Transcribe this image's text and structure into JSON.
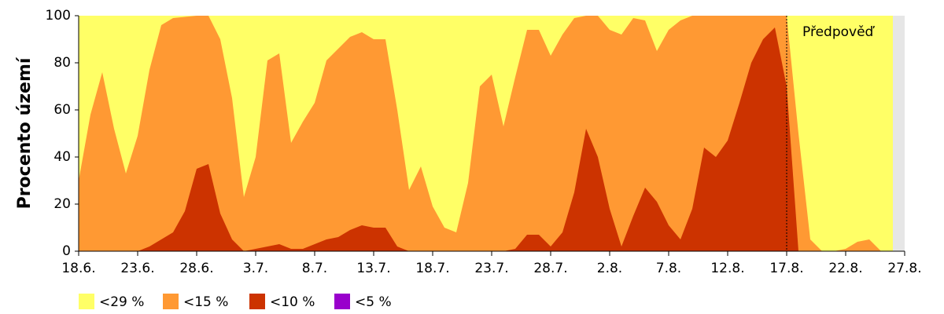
{
  "chart_data": {
    "type": "area",
    "y_label": "Procento území",
    "categories": [
      "18.6.",
      null,
      null,
      null,
      null,
      "23.6.",
      null,
      null,
      null,
      null,
      "28.6.",
      null,
      null,
      null,
      null,
      "3.7.",
      null,
      null,
      null,
      null,
      "8.7.",
      null,
      null,
      null,
      null,
      "13.7.",
      null,
      null,
      null,
      null,
      "18.7.",
      null,
      null,
      null,
      null,
      "23.7.",
      null,
      null,
      null,
      null,
      "28.7.",
      null,
      null,
      null,
      null,
      "2.8.",
      null,
      null,
      null,
      null,
      "7.8.",
      null,
      null,
      null,
      null,
      "12.8.",
      null,
      null,
      null,
      null,
      "17.8.",
      null,
      null,
      null,
      null,
      "22.8.",
      null,
      null,
      null,
      null,
      "27.8."
    ],
    "ylim": [
      0,
      100
    ],
    "yticks": [
      0,
      20,
      40,
      60,
      80,
      100
    ],
    "annotation": {
      "text": "Předpověď",
      "at": "17.8."
    },
    "series": [
      {
        "name": "<29 %",
        "color": "#ffff66",
        "values": [
          100,
          100,
          100,
          100,
          100,
          100,
          100,
          100,
          100,
          100,
          100,
          100,
          100,
          100,
          100,
          100,
          100,
          100,
          100,
          100,
          100,
          100,
          100,
          100,
          100,
          100,
          100,
          100,
          100,
          100,
          100,
          100,
          100,
          100,
          100,
          100,
          100,
          100,
          100,
          100,
          100,
          100,
          100,
          100,
          100,
          100,
          100,
          100,
          100,
          100,
          100,
          100,
          100,
          100,
          100,
          100,
          100,
          100,
          100,
          100,
          100,
          100,
          100,
          100,
          100,
          100,
          100,
          100,
          100,
          100,
          null
        ]
      },
      {
        "name": "<15 %",
        "color": "#ff9933",
        "values": [
          30,
          58,
          76,
          52,
          33,
          49,
          77,
          96,
          99,
          99.5,
          100,
          100,
          90,
          65,
          23,
          40,
          81,
          84,
          46,
          55,
          63,
          81,
          86,
          91,
          93,
          90,
          90,
          60,
          26,
          36,
          19,
          10,
          8,
          29,
          70,
          75,
          53,
          74,
          94,
          94,
          83,
          92,
          99,
          100,
          100,
          94,
          92,
          99,
          98,
          85,
          94,
          98,
          100,
          100,
          100,
          100,
          100,
          100,
          100,
          100,
          100,
          50,
          5,
          0,
          0,
          1,
          4,
          5,
          0,
          0,
          null
        ]
      },
      {
        "name": "<10 %",
        "color": "#cc3300",
        "values": [
          0,
          0,
          0,
          0,
          0,
          0,
          2,
          5,
          8,
          17,
          35,
          37,
          16,
          5,
          0,
          1,
          2,
          3,
          1,
          1,
          3,
          5,
          6,
          9,
          11,
          10,
          10,
          2,
          0,
          0,
          0,
          0,
          0,
          0,
          0,
          0,
          0,
          1,
          7,
          7,
          2,
          8,
          25,
          52,
          40,
          18,
          2,
          15,
          27,
          21,
          11,
          5,
          18,
          44,
          40,
          47,
          63,
          80,
          90,
          95,
          70,
          0,
          0,
          0,
          0,
          0,
          0,
          0,
          0,
          0,
          null
        ]
      },
      {
        "name": "<5 %",
        "color": "#9900cc",
        "values": [
          0,
          0,
          0,
          0,
          0,
          0,
          0,
          0,
          0,
          0,
          0,
          0,
          0,
          0,
          0,
          0,
          0,
          0,
          0,
          0,
          0,
          0,
          0,
          0,
          0,
          0,
          0,
          0,
          0,
          0,
          0,
          0,
          0,
          0,
          0,
          0,
          0,
          0,
          0,
          0,
          0,
          0,
          0,
          0,
          0,
          0,
          0,
          0,
          0,
          0,
          0,
          0,
          0,
          0,
          0,
          0,
          0,
          0,
          0,
          0,
          0,
          0,
          0,
          0,
          0,
          0,
          0,
          0,
          0,
          0,
          null
        ]
      }
    ]
  }
}
